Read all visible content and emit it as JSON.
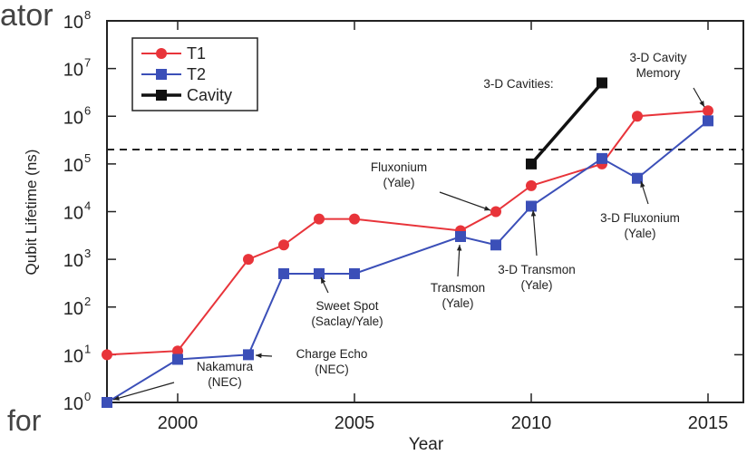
{
  "page_fragments": {
    "top_left": "ator",
    "bottom_left": "for"
  },
  "chart_data": {
    "type": "line",
    "title": "",
    "xlabel": "Year",
    "ylabel": "Qubit Lifetime (ns)",
    "xlim": [
      1998,
      2016
    ],
    "ylim_log10": [
      0,
      8
    ],
    "yscale": "log",
    "x_ticks": [
      2000,
      2005,
      2010,
      2015
    ],
    "x_tick_labels": [
      "2000",
      "2005",
      "2010",
      "2015"
    ],
    "y_ticks": [
      {
        "base": "10",
        "exp": "0",
        "value": 1
      },
      {
        "base": "10",
        "exp": "1",
        "value": 10
      },
      {
        "base": "10",
        "exp": "2",
        "value": 100
      },
      {
        "base": "10",
        "exp": "3",
        "value": 1000
      },
      {
        "base": "10",
        "exp": "4",
        "value": 10000
      },
      {
        "base": "10",
        "exp": "5",
        "value": 100000
      },
      {
        "base": "10",
        "exp": "6",
        "value": 1000000
      },
      {
        "base": "10",
        "exp": "7",
        "value": 10000000
      },
      {
        "base": "10",
        "exp": "8",
        "value": 100000000
      }
    ],
    "legend_position": "top-left",
    "series": [
      {
        "name": "T1",
        "color": "#e8343a",
        "marker": "circle",
        "points": [
          [
            1998,
            10
          ],
          [
            2000,
            12
          ],
          [
            2002,
            1000
          ],
          [
            2003,
            2000
          ],
          [
            2004,
            7000
          ],
          [
            2005,
            7000
          ],
          [
            2008,
            4000
          ],
          [
            2009,
            10000
          ],
          [
            2010,
            35000
          ],
          [
            2012,
            100000
          ],
          [
            2013,
            1000000
          ],
          [
            2015,
            1300000
          ]
        ]
      },
      {
        "name": "T2",
        "color": "#3b4fb8",
        "marker": "square",
        "points": [
          [
            1998,
            1
          ],
          [
            2000,
            8
          ],
          [
            2002,
            10
          ],
          [
            2003,
            500
          ],
          [
            2004,
            500
          ],
          [
            2005,
            500
          ],
          [
            2008,
            3000
          ],
          [
            2009,
            2000
          ],
          [
            2010,
            13000
          ],
          [
            2012,
            130000
          ],
          [
            2013,
            50000
          ],
          [
            2015,
            800000
          ]
        ]
      },
      {
        "name": "Cavity",
        "color": "#111111",
        "marker": "square",
        "points": [
          [
            2010,
            100000
          ],
          [
            2012,
            5000000
          ]
        ]
      }
    ],
    "reference_line": {
      "y": 200000,
      "style": "dashed"
    },
    "annotations": [
      {
        "lines": [
          "Nakamura",
          "(NEC)"
        ]
      },
      {
        "lines": [
          "Charge Echo",
          "(NEC)"
        ]
      },
      {
        "lines": [
          "Sweet Spot",
          "(Saclay/Yale)"
        ]
      },
      {
        "lines": [
          "Transmon",
          "(Yale)"
        ]
      },
      {
        "lines": [
          "3-D Transmon",
          "(Yale)"
        ]
      },
      {
        "lines": [
          "Fluxonium",
          "(Yale)"
        ]
      },
      {
        "lines": [
          "3-D Cavities:"
        ]
      },
      {
        "lines": [
          "3-D Cavity",
          "Memory"
        ]
      },
      {
        "lines": [
          "3-D Fluxonium",
          "(Yale)"
        ]
      }
    ]
  }
}
